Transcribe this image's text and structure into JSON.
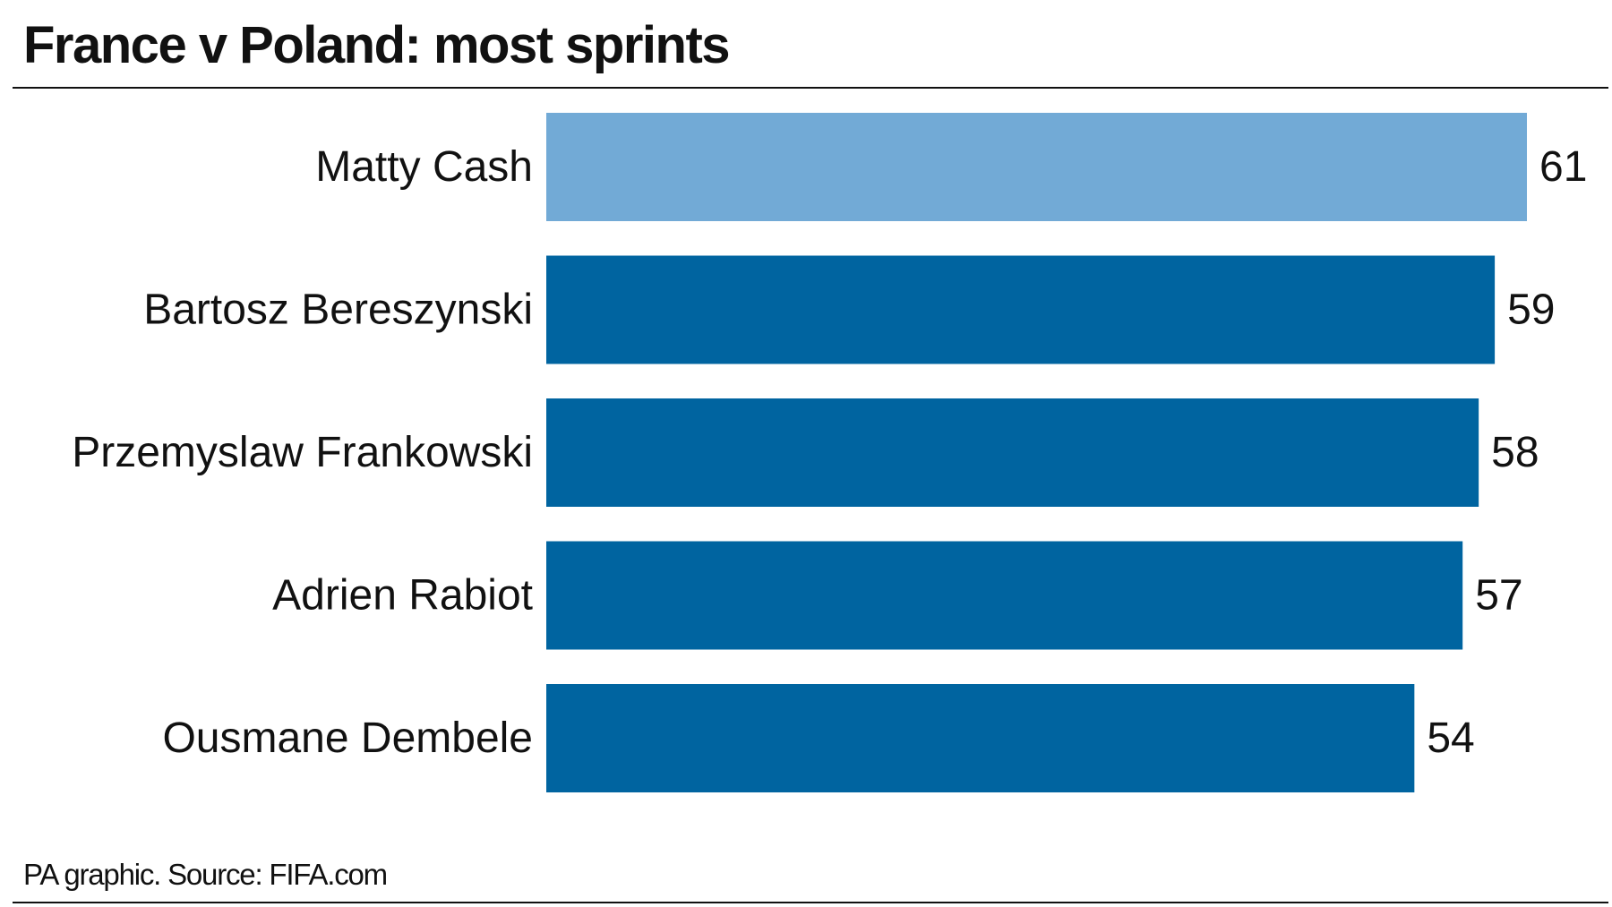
{
  "title": "France v Poland: most sprints",
  "source": "PA graphic. Source: FIFA.com",
  "colors": {
    "highlight": "#72aad6",
    "bar": "#0064a0",
    "text": "#111111"
  },
  "chart_data": {
    "type": "bar",
    "orientation": "horizontal",
    "title": "France v Poland: most sprints",
    "xlabel": "",
    "ylabel": "",
    "xlim": [
      0,
      61
    ],
    "grid": false,
    "categories": [
      "Matty Cash",
      "Bartosz Bereszynski",
      "Przemyslaw Frankowski",
      "Adrien Rabiot",
      "Ousmane Dembele"
    ],
    "values": [
      61,
      59,
      58,
      57,
      54
    ],
    "highlight_index": 0,
    "value_labels": [
      "61",
      "59",
      "58",
      "57",
      "54"
    ]
  }
}
